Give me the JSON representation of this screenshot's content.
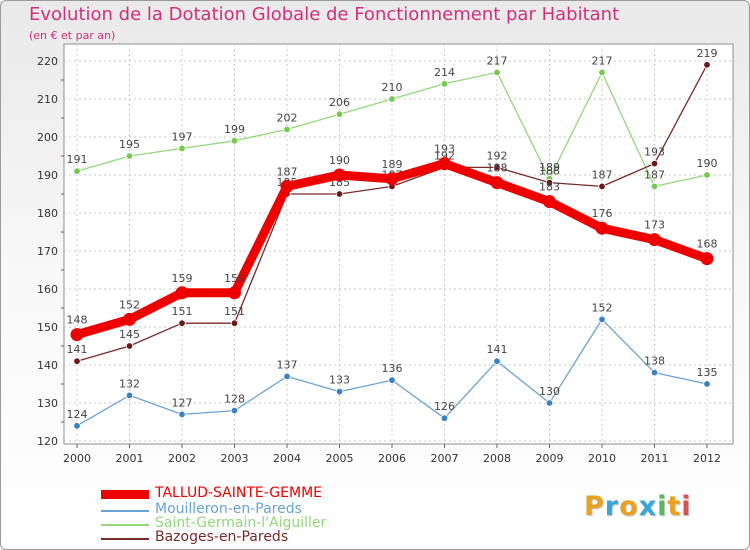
{
  "header": {
    "title": "Evolution de la Dotation Globale de Fonctionnement par Habitant",
    "subtitle": "(en € et par an)"
  },
  "brand": {
    "logo_letters": [
      "P",
      "r",
      "o",
      "x",
      "i",
      "t",
      "i"
    ],
    "logo_colors": [
      "#e8a222",
      "#3aa6d8",
      "#e8a222",
      "#3aa6d8",
      "#5cb85c",
      "#e8a222",
      "#d9534f"
    ]
  },
  "chart_data": {
    "type": "line",
    "title": "Evolution de la Dotation Globale de Fonctionnement par Habitant",
    "subtitle": "(en € et par an)",
    "xlabel": "",
    "ylabel": "",
    "x": [
      "2000",
      "2001",
      "2002",
      "2003",
      "2004",
      "2005",
      "2006",
      "2007",
      "2008",
      "2009",
      "2010",
      "2011",
      "2012"
    ],
    "ylim": [
      120,
      220
    ],
    "yticks": [
      120,
      130,
      140,
      150,
      160,
      170,
      180,
      190,
      200,
      210,
      220
    ],
    "grid": true,
    "legend_position": "bottom-left",
    "series": [
      {
        "name": "Mouilleron-en-Pareds",
        "color": "#6aa3d5",
        "marker_color": "#3b82c4",
        "values": [
          124,
          132,
          127,
          128,
          137,
          133,
          136,
          126,
          141,
          130,
          152,
          138,
          135
        ],
        "labels": [
          "124",
          "132",
          "127",
          "128",
          "137",
          "133",
          "136",
          "126",
          "141",
          "130",
          "152",
          "138",
          "135"
        ]
      },
      {
        "name": "Saint-Germain-l'Aiguiller",
        "color": "#93d87a",
        "marker_color": "#76c94e",
        "values": [
          191,
          195,
          197,
          199,
          202,
          206,
          210,
          214,
          217,
          189,
          217,
          187,
          190
        ],
        "labels": [
          "191",
          "195",
          "197",
          "199",
          "202",
          "206",
          "210",
          "214",
          "217",
          "189",
          "217",
          "187",
          "190"
        ]
      },
      {
        "name": "Bazoges-en-Pareds",
        "color": "#7a2a2a",
        "marker_color": "#6b1a1a",
        "values": [
          141,
          145,
          151,
          151,
          185,
          185,
          187,
          192,
          192,
          188,
          187,
          193,
          219
        ],
        "labels": [
          "141",
          "145",
          "151",
          "151",
          "185",
          "185",
          "187",
          "192",
          "192",
          "188",
          "187",
          "193",
          "219"
        ]
      },
      {
        "name": "TALLUD-SAINTE-GEMME",
        "color": "#ee0000",
        "marker_color": "#ee0000",
        "highlight": true,
        "values": [
          148,
          152,
          159,
          159,
          187,
          190,
          189,
          193,
          188,
          183,
          176,
          173,
          168
        ],
        "labels": [
          "148",
          "152",
          "159",
          "159",
          "187",
          "190",
          "189",
          "193",
          "188",
          "183",
          "176",
          "173",
          "168"
        ]
      }
    ],
    "legend": [
      "TALLUD-SAINTE-GEMME",
      "Mouilleron-en-Pareds",
      "Saint-Germain-l'Aiguiller",
      "Bazoges-en-Pareds"
    ]
  }
}
